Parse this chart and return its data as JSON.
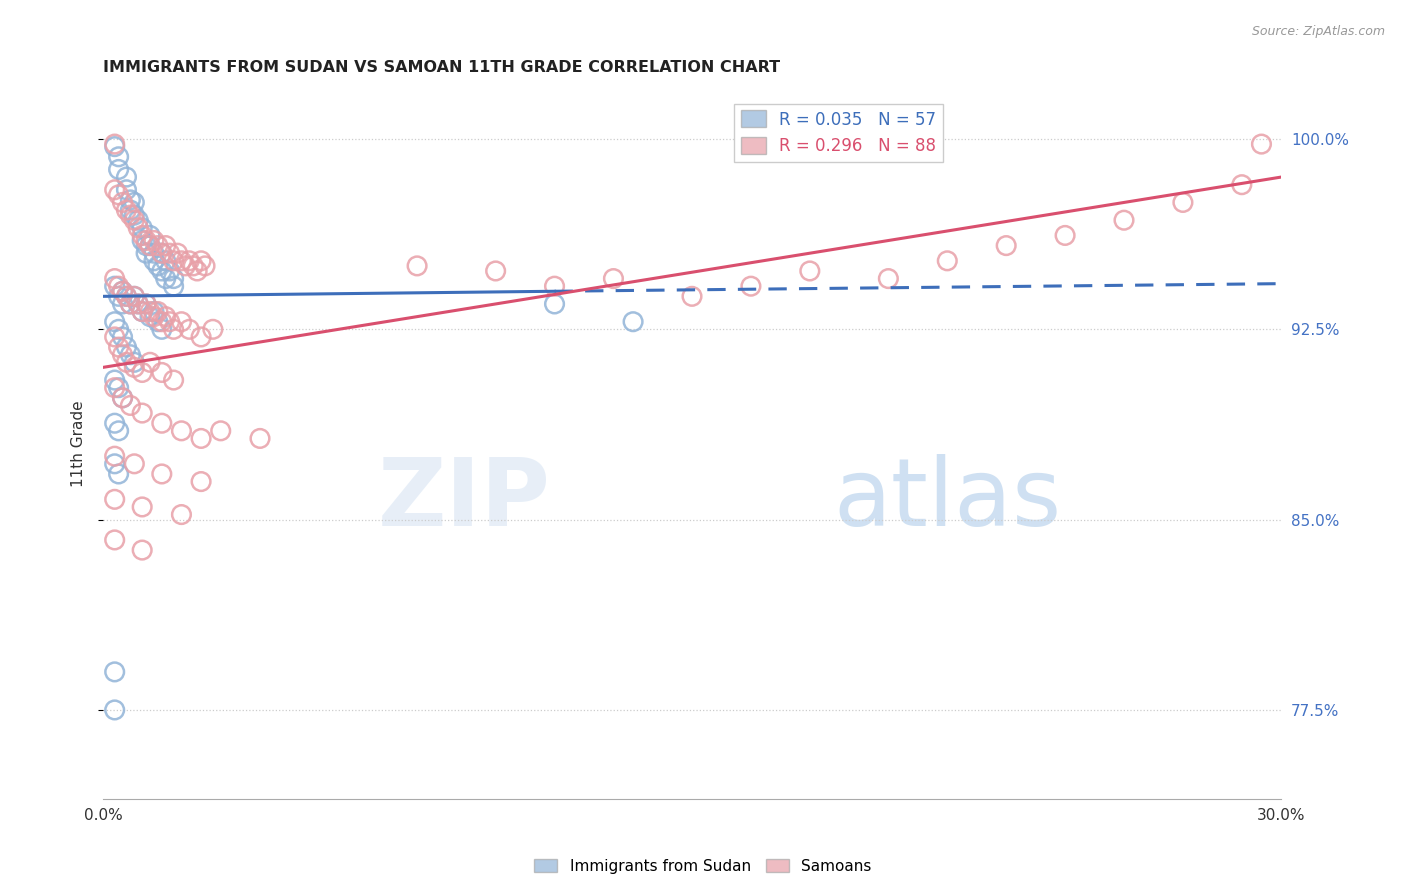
{
  "title": "IMMIGRANTS FROM SUDAN VS SAMOAN 11TH GRADE CORRELATION CHART",
  "source": "Source: ZipAtlas.com",
  "ylabel": "11th Grade",
  "ytick_labels": [
    "77.5%",
    "85.0%",
    "92.5%",
    "100.0%"
  ],
  "ytick_values": [
    0.775,
    0.85,
    0.925,
    1.0
  ],
  "xlim": [
    0.0,
    0.3
  ],
  "ylim": [
    0.74,
    1.02
  ],
  "blue_color": "#92b4d8",
  "pink_color": "#e8a0a8",
  "blue_line_color": "#3d6eba",
  "pink_line_color": "#d94f6e",
  "blue_solid_line": {
    "x0": 0.0,
    "y0": 0.938,
    "x1": 0.115,
    "y1": 0.94
  },
  "blue_dashed_line": {
    "x0": 0.115,
    "y0": 0.94,
    "x1": 0.3,
    "y1": 0.943
  },
  "pink_line": {
    "x0": 0.0,
    "y0": 0.91,
    "x1": 0.3,
    "y1": 0.985
  },
  "sudan_scatter": [
    [
      0.003,
      0.997
    ],
    [
      0.004,
      0.993
    ],
    [
      0.004,
      0.988
    ],
    [
      0.006,
      0.985
    ],
    [
      0.006,
      0.98
    ],
    [
      0.007,
      0.976
    ],
    [
      0.007,
      0.972
    ],
    [
      0.008,
      0.975
    ],
    [
      0.008,
      0.97
    ],
    [
      0.009,
      0.968
    ],
    [
      0.01,
      0.965
    ],
    [
      0.01,
      0.96
    ],
    [
      0.011,
      0.958
    ],
    [
      0.011,
      0.955
    ],
    [
      0.012,
      0.962
    ],
    [
      0.012,
      0.958
    ],
    [
      0.013,
      0.955
    ],
    [
      0.013,
      0.952
    ],
    [
      0.014,
      0.95
    ],
    [
      0.015,
      0.948
    ],
    [
      0.015,
      0.955
    ],
    [
      0.016,
      0.952
    ],
    [
      0.016,
      0.945
    ],
    [
      0.017,
      0.948
    ],
    [
      0.018,
      0.945
    ],
    [
      0.018,
      0.942
    ],
    [
      0.003,
      0.942
    ],
    [
      0.004,
      0.938
    ],
    [
      0.005,
      0.94
    ],
    [
      0.005,
      0.935
    ],
    [
      0.006,
      0.938
    ],
    [
      0.007,
      0.935
    ],
    [
      0.008,
      0.938
    ],
    [
      0.009,
      0.935
    ],
    [
      0.01,
      0.932
    ],
    [
      0.011,
      0.935
    ],
    [
      0.012,
      0.93
    ],
    [
      0.013,
      0.932
    ],
    [
      0.014,
      0.928
    ],
    [
      0.015,
      0.925
    ],
    [
      0.003,
      0.928
    ],
    [
      0.004,
      0.925
    ],
    [
      0.005,
      0.922
    ],
    [
      0.006,
      0.918
    ],
    [
      0.007,
      0.915
    ],
    [
      0.008,
      0.912
    ],
    [
      0.003,
      0.905
    ],
    [
      0.004,
      0.902
    ],
    [
      0.005,
      0.898
    ],
    [
      0.003,
      0.888
    ],
    [
      0.004,
      0.885
    ],
    [
      0.003,
      0.872
    ],
    [
      0.004,
      0.868
    ],
    [
      0.115,
      0.935
    ],
    [
      0.135,
      0.928
    ],
    [
      0.003,
      0.79
    ],
    [
      0.003,
      0.775
    ]
  ],
  "samoan_scatter": [
    [
      0.003,
      0.998
    ],
    [
      0.003,
      0.98
    ],
    [
      0.004,
      0.978
    ],
    [
      0.005,
      0.975
    ],
    [
      0.006,
      0.972
    ],
    [
      0.007,
      0.97
    ],
    [
      0.008,
      0.968
    ],
    [
      0.009,
      0.965
    ],
    [
      0.01,
      0.962
    ],
    [
      0.011,
      0.96
    ],
    [
      0.012,
      0.958
    ],
    [
      0.013,
      0.96
    ],
    [
      0.014,
      0.958
    ],
    [
      0.015,
      0.955
    ],
    [
      0.016,
      0.958
    ],
    [
      0.017,
      0.955
    ],
    [
      0.018,
      0.952
    ],
    [
      0.019,
      0.955
    ],
    [
      0.02,
      0.952
    ],
    [
      0.021,
      0.95
    ],
    [
      0.022,
      0.952
    ],
    [
      0.023,
      0.95
    ],
    [
      0.024,
      0.948
    ],
    [
      0.025,
      0.952
    ],
    [
      0.026,
      0.95
    ],
    [
      0.003,
      0.945
    ],
    [
      0.004,
      0.942
    ],
    [
      0.005,
      0.94
    ],
    [
      0.006,
      0.938
    ],
    [
      0.007,
      0.935
    ],
    [
      0.008,
      0.938
    ],
    [
      0.009,
      0.935
    ],
    [
      0.01,
      0.932
    ],
    [
      0.011,
      0.935
    ],
    [
      0.012,
      0.932
    ],
    [
      0.013,
      0.93
    ],
    [
      0.014,
      0.932
    ],
    [
      0.015,
      0.928
    ],
    [
      0.016,
      0.93
    ],
    [
      0.017,
      0.928
    ],
    [
      0.018,
      0.925
    ],
    [
      0.02,
      0.928
    ],
    [
      0.022,
      0.925
    ],
    [
      0.025,
      0.922
    ],
    [
      0.028,
      0.925
    ],
    [
      0.003,
      0.922
    ],
    [
      0.004,
      0.918
    ],
    [
      0.005,
      0.915
    ],
    [
      0.006,
      0.912
    ],
    [
      0.008,
      0.91
    ],
    [
      0.01,
      0.908
    ],
    [
      0.012,
      0.912
    ],
    [
      0.015,
      0.908
    ],
    [
      0.018,
      0.905
    ],
    [
      0.003,
      0.902
    ],
    [
      0.005,
      0.898
    ],
    [
      0.007,
      0.895
    ],
    [
      0.01,
      0.892
    ],
    [
      0.015,
      0.888
    ],
    [
      0.02,
      0.885
    ],
    [
      0.025,
      0.882
    ],
    [
      0.03,
      0.885
    ],
    [
      0.04,
      0.882
    ],
    [
      0.003,
      0.875
    ],
    [
      0.008,
      0.872
    ],
    [
      0.015,
      0.868
    ],
    [
      0.025,
      0.865
    ],
    [
      0.003,
      0.858
    ],
    [
      0.01,
      0.855
    ],
    [
      0.02,
      0.852
    ],
    [
      0.003,
      0.842
    ],
    [
      0.01,
      0.838
    ],
    [
      0.08,
      0.95
    ],
    [
      0.1,
      0.948
    ],
    [
      0.115,
      0.942
    ],
    [
      0.13,
      0.945
    ],
    [
      0.15,
      0.938
    ],
    [
      0.165,
      0.942
    ],
    [
      0.18,
      0.948
    ],
    [
      0.2,
      0.945
    ],
    [
      0.215,
      0.952
    ],
    [
      0.23,
      0.958
    ],
    [
      0.245,
      0.962
    ],
    [
      0.26,
      0.968
    ],
    [
      0.275,
      0.975
    ],
    [
      0.29,
      0.982
    ],
    [
      0.295,
      0.998
    ]
  ]
}
